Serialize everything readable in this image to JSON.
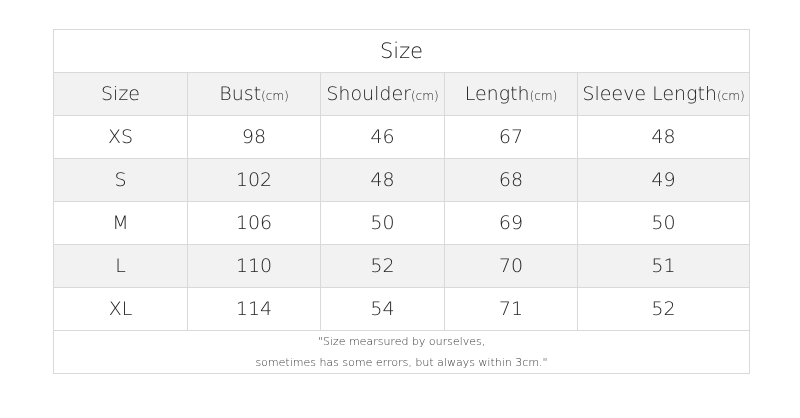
{
  "title": "Size",
  "columns": [
    {
      "label": "Size",
      "unit": ""
    },
    {
      "label": "Bust",
      "unit": "(cm)"
    },
    {
      "label": "Shoulder",
      "unit": "(cm)"
    },
    {
      "label": "Length",
      "unit": "(cm)"
    },
    {
      "label": "Sleeve Length",
      "unit": "(cm)"
    }
  ],
  "rows": [
    [
      "XS",
      "98",
      "46",
      "67",
      "48"
    ],
    [
      "S",
      "102",
      "48",
      "68",
      "49"
    ],
    [
      "M",
      "106",
      "50",
      "69",
      "50"
    ],
    [
      "L",
      "110",
      "52",
      "70",
      "51"
    ],
    [
      "XL",
      "114",
      "54",
      "71",
      "52"
    ]
  ],
  "note": {
    "line1": "\"Size mearsured by ourselves,",
    "line2": "sometimes has some errors, but always within 3cm.\""
  },
  "colors": {
    "border": "#d9d9d9",
    "stripe": "#f2f2f2"
  }
}
